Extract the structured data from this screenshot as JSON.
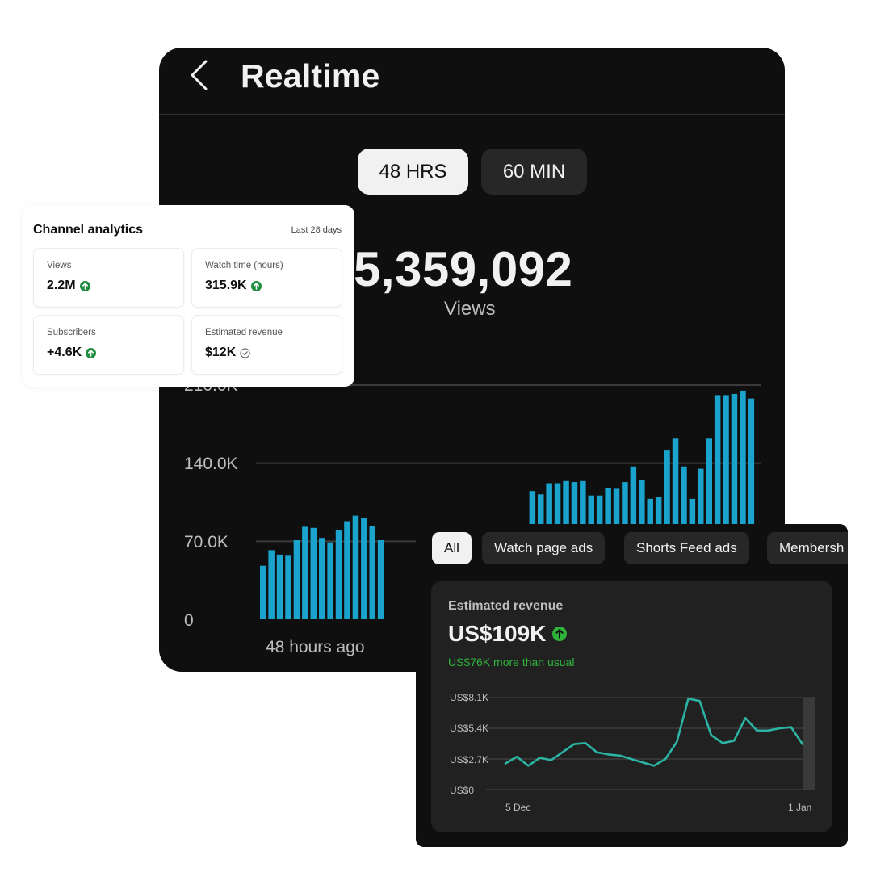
{
  "realtime": {
    "title": "Realtime",
    "tabs": [
      {
        "label": "48 HRS",
        "selected": true
      },
      {
        "label": "60 MIN",
        "selected": false
      }
    ],
    "total_views": "5,359,092",
    "total_label": "Views",
    "colors": {
      "bar": "#1aa3cc",
      "grid": "#3a3a3a",
      "background": "#0f0f0f"
    }
  },
  "analytics": {
    "title": "Channel analytics",
    "period": "Last 28 days",
    "stats": [
      {
        "label": "Views",
        "value": "2.2M",
        "icon": "arrow-up-circle-icon"
      },
      {
        "label": "Watch time (hours)",
        "value": "315.9K",
        "icon": "arrow-up-circle-icon"
      },
      {
        "label": "Subscribers",
        "value": "+4.6K",
        "icon": "arrow-up-circle-icon"
      },
      {
        "label": "Estimated revenue",
        "value": "$12K",
        "icon": "check-circle-icon"
      }
    ]
  },
  "revenue": {
    "chips": [
      "All",
      "Watch page ads",
      "Shorts Feed ads",
      "Membersh"
    ],
    "label": "Estimated revenue",
    "value": "US$109K",
    "note": "US$76K more than usual",
    "colors": {
      "line": "#2bb3a3",
      "note": "#2fb33a",
      "up": "#1e8e3e"
    }
  },
  "chart_data": [
    {
      "type": "bar",
      "ytick_labels": [
        "0",
        "70.0K",
        "140.0K",
        "210.0K"
      ],
      "ylim": [
        0,
        210000
      ],
      "xlabel_start": "48 hours ago",
      "grid": true,
      "values": [
        48000,
        62000,
        58000,
        57000,
        71000,
        83000,
        82000,
        73000,
        69000,
        80000,
        88000,
        93000,
        91000,
        84000,
        71000,
        null,
        null,
        null,
        null,
        null,
        null,
        null,
        null,
        null,
        null,
        null,
        null,
        null,
        null,
        null,
        null,
        null,
        115000,
        112000,
        122000,
        122000,
        124000,
        123000,
        124000,
        111000,
        111000,
        118000,
        117000,
        123000,
        137000,
        125000,
        108000,
        110000,
        152000,
        162000,
        137000,
        108000,
        135000,
        162000,
        201000,
        201000,
        202000,
        205000,
        198000
      ]
    },
    {
      "type": "line",
      "ytick_labels": [
        "US$0",
        "US$2.7K",
        "US$5.4K",
        "US$8.1K"
      ],
      "ylim": [
        0,
        8100
      ],
      "x_labels": [
        "5 Dec",
        "1 Jan"
      ],
      "grid": true,
      "values": [
        2300,
        2900,
        2100,
        2800,
        2600,
        3300,
        4000,
        4100,
        3300,
        3100,
        3000,
        2700,
        2400,
        2100,
        2700,
        4200,
        8000,
        7800,
        4800,
        4100,
        4300,
        6300,
        5200,
        5200,
        5400,
        5500,
        4000
      ]
    }
  ]
}
